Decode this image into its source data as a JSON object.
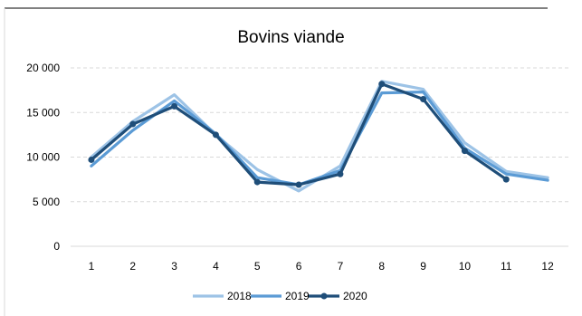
{
  "chart_data": {
    "type": "line",
    "title": "Bovins viande",
    "xlabel": "",
    "ylabel": "",
    "categories": [
      "1",
      "2",
      "3",
      "4",
      "5",
      "6",
      "7",
      "8",
      "9",
      "10",
      "11",
      "12"
    ],
    "y_ticks": [
      "0",
      "5 000",
      "10 000",
      "15 000",
      "20 000"
    ],
    "ylim": [
      0,
      20000
    ],
    "grid": true,
    "legend_position": "bottom",
    "series": [
      {
        "name": "2018",
        "color": "#9dc3e6",
        "markers": false,
        "values": [
          10000,
          14000,
          17000,
          12500,
          8600,
          6200,
          9000,
          18500,
          17600,
          11600,
          8400,
          7700
        ]
      },
      {
        "name": "2019",
        "color": "#5b9bd5",
        "markers": false,
        "values": [
          9000,
          13000,
          16300,
          12600,
          7700,
          6900,
          8500,
          17200,
          17300,
          11000,
          8100,
          7400
        ]
      },
      {
        "name": "2020",
        "color": "#1f4e79",
        "markers": true,
        "values": [
          9700,
          13700,
          15700,
          12500,
          7200,
          6900,
          8100,
          18200,
          16500,
          10700,
          7500,
          null
        ]
      }
    ]
  }
}
